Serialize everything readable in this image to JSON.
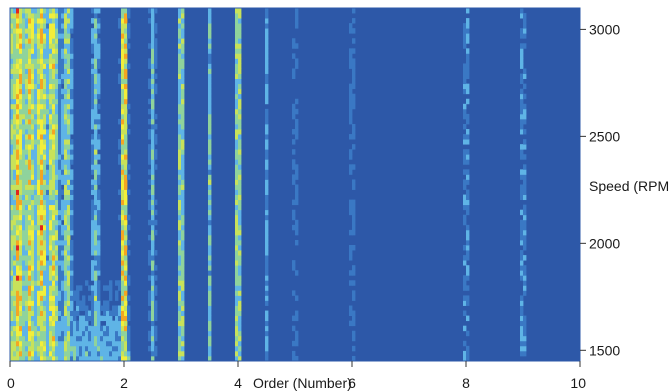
{
  "chart_data": {
    "type": "heatmap",
    "title": "",
    "xlabel": "Order (Number)",
    "ylabel": "Speed (RPM)",
    "xlim": [
      0,
      10
    ],
    "ylim": [
      1450,
      3100
    ],
    "x_ticks": [
      {
        "value": 0,
        "label": "0"
      },
      {
        "value": 2,
        "label": "2"
      },
      {
        "value": 4,
        "label": "4"
      },
      {
        "value": 6,
        "label": "6"
      },
      {
        "value": 8,
        "label": "8"
      },
      {
        "value": 10,
        "label": "10"
      }
    ],
    "y_ticks": [
      {
        "value": 1500,
        "label": "1500"
      },
      {
        "value": 2000,
        "label": "2000"
      },
      {
        "value": 2500,
        "label": "2500"
      },
      {
        "value": 3000,
        "label": "3000"
      }
    ],
    "colormap": [
      "#2d58a8",
      "#3a78c4",
      "#5fb4e6",
      "#8fd39c",
      "#c8e25a",
      "#f2ee3a",
      "#f4a623",
      "#e0261f"
    ],
    "background_color": "#2d58a8",
    "order_lines": [
      {
        "order": 0.15,
        "level": 0.78,
        "width": 0.12
      },
      {
        "order": 0.35,
        "level": 0.72,
        "width": 0.12
      },
      {
        "order": 0.55,
        "level": 0.74,
        "width": 0.14
      },
      {
        "order": 0.75,
        "level": 0.66,
        "width": 0.14
      },
      {
        "order": 1.0,
        "level": 0.55,
        "width": 0.12
      },
      {
        "order": 1.5,
        "level": 0.42,
        "width": 0.1
      },
      {
        "order": 2.0,
        "level": 0.85,
        "width": 0.08
      },
      {
        "order": 2.5,
        "level": 0.4,
        "width": 0.08
      },
      {
        "order": 3.0,
        "level": 0.6,
        "width": 0.07
      },
      {
        "order": 3.5,
        "level": 0.42,
        "width": 0.06
      },
      {
        "order": 4.0,
        "level": 0.62,
        "width": 0.07
      },
      {
        "order": 4.5,
        "level": 0.3,
        "width": 0.05
      },
      {
        "order": 5.0,
        "level": 0.3,
        "width": 0.05
      },
      {
        "order": 6.0,
        "level": 0.32,
        "width": 0.05
      },
      {
        "order": 8.0,
        "level": 0.35,
        "width": 0.05
      },
      {
        "order": 9.0,
        "level": 0.38,
        "width": 0.05
      }
    ]
  }
}
